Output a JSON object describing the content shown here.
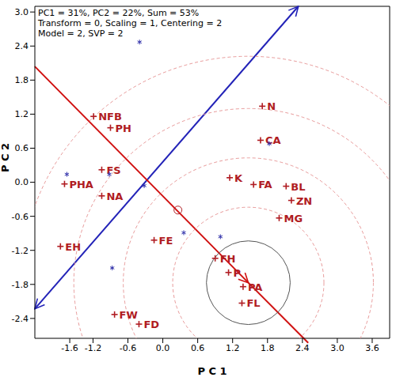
{
  "chart_data": {
    "type": "biplot",
    "texts": [
      "PC1 = 31%, PC2 = 22%, Sum = 53%",
      "Transform = 0, Scaling = 1, Centering = 2",
      "Model = 2, SVP = 2"
    ],
    "x_label": "P C 1",
    "y_label": "P C 2",
    "xlim": [
      -2.2,
      3.9
    ],
    "ylim": [
      -2.75,
      3.1
    ],
    "xticks": [
      -1.6,
      -1.2,
      -0.6,
      {
        "value": 0,
        "label": "0.0"
      },
      0.6,
      1.2,
      1.8,
      2.4,
      {
        "value": 3,
        "label": "3.0"
      },
      3.6
    ],
    "yticks": [
      -2.4,
      -1.8,
      -1.2,
      -0.6,
      {
        "value": 0,
        "label": "0.0"
      },
      0.6,
      1.2,
      1.8,
      2.4,
      {
        "value": 3,
        "label": "3.0"
      }
    ],
    "grid": false,
    "series": [
      {
        "type": "scatter",
        "marker": "plus",
        "color": "#b01c22",
        "points": [
          {
            "label": "NFB",
            "x": -1.19,
            "y": 1.16
          },
          {
            "label": "PH",
            "x": -0.9,
            "y": 0.96
          },
          {
            "label": "FS",
            "x": -1.05,
            "y": 0.22
          },
          {
            "label": "PHA",
            "x": -1.69,
            "y": -0.03
          },
          {
            "label": "NA",
            "x": -1.05,
            "y": -0.24
          },
          {
            "label": "EH",
            "x": -1.76,
            "y": -1.13
          },
          {
            "label": "FE",
            "x": -0.15,
            "y": -1.02
          },
          {
            "label": "FW",
            "x": -0.83,
            "y": -2.33
          },
          {
            "label": "FD",
            "x": -0.41,
            "y": -2.5
          },
          {
            "label": "N",
            "x": 1.71,
            "y": 1.34
          },
          {
            "label": "CA",
            "x": 1.68,
            "y": 0.74
          },
          {
            "label": "K",
            "x": 1.15,
            "y": 0.08
          },
          {
            "label": "FA",
            "x": 1.56,
            "y": -0.04
          },
          {
            "label": "BL",
            "x": 2.12,
            "y": -0.07
          },
          {
            "label": "ZN",
            "x": 2.21,
            "y": -0.32
          },
          {
            "label": "MG",
            "x": 2.0,
            "y": -0.63
          },
          {
            "label": "FH",
            "x": 0.9,
            "y": -1.34
          },
          {
            "label": "P",
            "x": 1.13,
            "y": -1.59
          },
          {
            "label": "PA",
            "x": 1.38,
            "y": -1.84
          },
          {
            "label": "FL",
            "x": 1.36,
            "y": -2.13
          }
        ]
      },
      {
        "type": "scatter",
        "marker": "star",
        "color": "#2c2ca8",
        "points": [
          {
            "x": -0.4,
            "y": 2.47
          },
          {
            "x": -1.65,
            "y": 0.14
          },
          {
            "x": -0.92,
            "y": 0.14
          },
          {
            "x": -0.32,
            "y": -0.06
          },
          {
            "x": 0.36,
            "y": -0.89
          },
          {
            "x": 0.99,
            "y": -0.96
          },
          {
            "x": -0.87,
            "y": -1.51
          },
          {
            "x": 1.83,
            "y": 0.68
          }
        ]
      },
      {
        "type": "scatter",
        "marker": "circle",
        "color": "#b01c22",
        "points": [
          {
            "x": 0.26,
            "y": -0.49
          }
        ]
      },
      {
        "type": "line",
        "marker": "double_arrow",
        "color": "#2323b8",
        "points": [
          [
            -2.2,
            -2.23
          ],
          [
            2.33,
            3.1
          ]
        ]
      },
      {
        "type": "line",
        "marker": "arrow",
        "color": "#d01010",
        "points": [
          [
            -2.2,
            2.04
          ],
          [
            1.47,
            -1.77
          ]
        ]
      },
      {
        "type": "line",
        "marker": "none",
        "color": "#d01010",
        "points": [
          [
            1.47,
            -1.77
          ],
          [
            2.5,
            -2.83
          ]
        ]
      }
    ],
    "circles": [
      {
        "center": [
          1.47,
          -1.77
        ],
        "radius": 0.72,
        "line_style": "solid",
        "color": "#555555"
      },
      {
        "center": [
          1.47,
          -1.77
        ],
        "radius": 1.3,
        "line_style": "dashed",
        "color": "#e89a9a"
      },
      {
        "center": [
          1.47,
          -1.77
        ],
        "radius": 2.15,
        "line_style": "dashed",
        "color": "#e89a9a"
      },
      {
        "center": [
          1.47,
          -1.77
        ],
        "radius": 3.0,
        "line_style": "dashed",
        "color": "#e89a9a"
      },
      {
        "center": [
          1.47,
          -1.77
        ],
        "radius": 3.9,
        "line_style": "dashed",
        "color": "#e89a9a"
      }
    ]
  }
}
